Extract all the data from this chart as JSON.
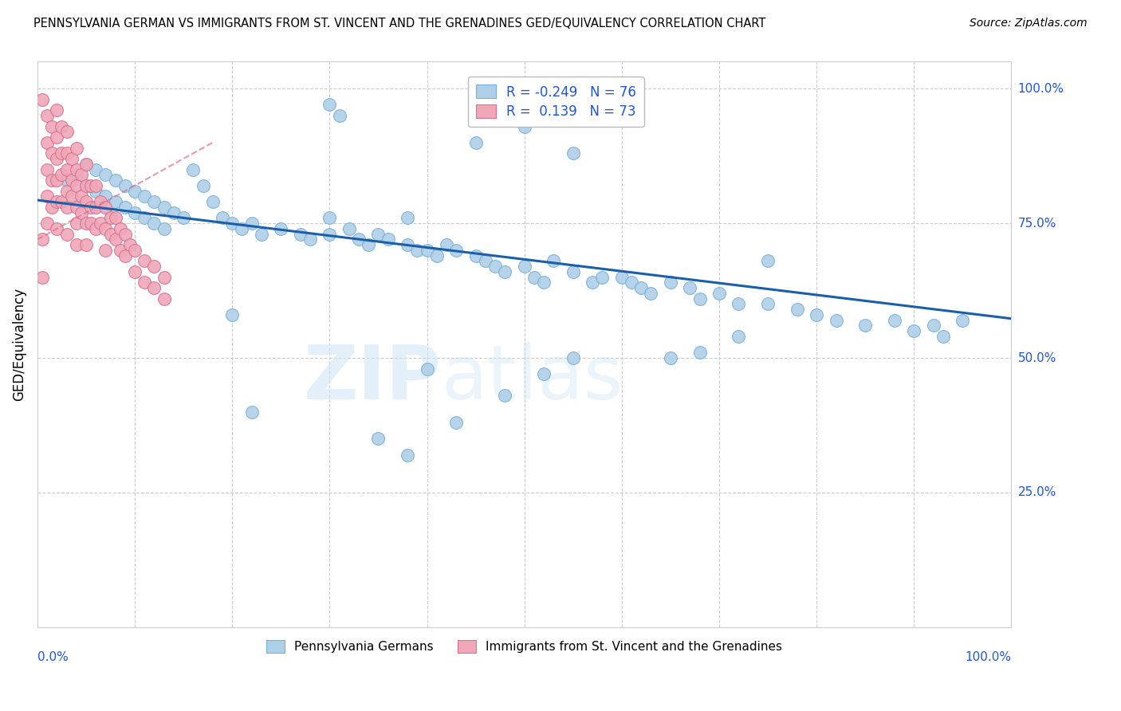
{
  "title": "PENNSYLVANIA GERMAN VS IMMIGRANTS FROM ST. VINCENT AND THE GRENADINES GED/EQUIVALENCY CORRELATION CHART",
  "source": "Source: ZipAtlas.com",
  "ylabel": "GED/Equivalency",
  "xlim": [
    0.0,
    1.0
  ],
  "ylim": [
    0.0,
    1.05
  ],
  "blue_R": -0.249,
  "blue_N": 76,
  "pink_R": 0.139,
  "pink_N": 73,
  "blue_color": "#aecfe8",
  "blue_edge": "#7ab0d8",
  "pink_color": "#f0a8b8",
  "pink_edge": "#d87090",
  "trendline_color": "#1a5faa",
  "trendline_pink_color": "#d87090",
  "watermark_zip": "ZIP",
  "watermark_atlas": "atlas",
  "blue_x": [
    0.03,
    0.04,
    0.05,
    0.05,
    0.06,
    0.06,
    0.07,
    0.07,
    0.08,
    0.08,
    0.09,
    0.09,
    0.1,
    0.1,
    0.11,
    0.11,
    0.12,
    0.12,
    0.13,
    0.13,
    0.14,
    0.15,
    0.16,
    0.17,
    0.18,
    0.19,
    0.2,
    0.21,
    0.22,
    0.23,
    0.25,
    0.27,
    0.28,
    0.3,
    0.3,
    0.32,
    0.33,
    0.34,
    0.35,
    0.36,
    0.38,
    0.38,
    0.39,
    0.4,
    0.41,
    0.42,
    0.43,
    0.45,
    0.46,
    0.47,
    0.48,
    0.5,
    0.51,
    0.52,
    0.53,
    0.55,
    0.57,
    0.6,
    0.61,
    0.62,
    0.63,
    0.65,
    0.67,
    0.68,
    0.7,
    0.72,
    0.75,
    0.78,
    0.8,
    0.82,
    0.85,
    0.88,
    0.9,
    0.92,
    0.93,
    0.95
  ],
  "blue_y": [
    0.83,
    0.84,
    0.86,
    0.82,
    0.85,
    0.81,
    0.84,
    0.8,
    0.83,
    0.79,
    0.82,
    0.78,
    0.81,
    0.77,
    0.8,
    0.76,
    0.79,
    0.75,
    0.78,
    0.74,
    0.77,
    0.76,
    0.85,
    0.82,
    0.79,
    0.76,
    0.75,
    0.74,
    0.75,
    0.73,
    0.74,
    0.73,
    0.72,
    0.76,
    0.73,
    0.74,
    0.72,
    0.71,
    0.73,
    0.72,
    0.76,
    0.71,
    0.7,
    0.7,
    0.69,
    0.71,
    0.7,
    0.69,
    0.68,
    0.67,
    0.66,
    0.67,
    0.65,
    0.64,
    0.68,
    0.66,
    0.64,
    0.65,
    0.64,
    0.63,
    0.62,
    0.64,
    0.63,
    0.61,
    0.62,
    0.6,
    0.6,
    0.59,
    0.58,
    0.57,
    0.56,
    0.57,
    0.55,
    0.56,
    0.54,
    0.57
  ],
  "blue_outliers_x": [
    0.3,
    0.31,
    0.5,
    0.45,
    0.55,
    0.6,
    0.2,
    0.22,
    0.35,
    0.38,
    0.4,
    0.43,
    0.48,
    0.52,
    0.55,
    0.58,
    0.65,
    0.68,
    0.72,
    0.75
  ],
  "blue_outliers_y": [
    0.97,
    0.95,
    0.93,
    0.9,
    0.88,
    1.0,
    0.58,
    0.4,
    0.35,
    0.32,
    0.48,
    0.38,
    0.43,
    0.47,
    0.5,
    0.65,
    0.5,
    0.51,
    0.54,
    0.68
  ],
  "pink_x": [
    0.01,
    0.01,
    0.01,
    0.01,
    0.01,
    0.015,
    0.015,
    0.015,
    0.015,
    0.02,
    0.02,
    0.02,
    0.02,
    0.02,
    0.02,
    0.025,
    0.025,
    0.025,
    0.025,
    0.03,
    0.03,
    0.03,
    0.03,
    0.03,
    0.03,
    0.035,
    0.035,
    0.035,
    0.04,
    0.04,
    0.04,
    0.04,
    0.04,
    0.04,
    0.045,
    0.045,
    0.045,
    0.05,
    0.05,
    0.05,
    0.05,
    0.05,
    0.055,
    0.055,
    0.055,
    0.06,
    0.06,
    0.06,
    0.065,
    0.065,
    0.07,
    0.07,
    0.07,
    0.075,
    0.075,
    0.08,
    0.08,
    0.085,
    0.085,
    0.09,
    0.09,
    0.095,
    0.1,
    0.1,
    0.11,
    0.11,
    0.12,
    0.12,
    0.13,
    0.13,
    0.005,
    0.005,
    0.005
  ],
  "pink_y": [
    0.95,
    0.9,
    0.85,
    0.8,
    0.75,
    0.93,
    0.88,
    0.83,
    0.78,
    0.96,
    0.91,
    0.87,
    0.83,
    0.79,
    0.74,
    0.93,
    0.88,
    0.84,
    0.79,
    0.92,
    0.88,
    0.85,
    0.81,
    0.78,
    0.73,
    0.87,
    0.83,
    0.8,
    0.89,
    0.85,
    0.82,
    0.78,
    0.75,
    0.71,
    0.84,
    0.8,
    0.77,
    0.86,
    0.82,
    0.79,
    0.75,
    0.71,
    0.82,
    0.78,
    0.75,
    0.82,
    0.78,
    0.74,
    0.79,
    0.75,
    0.78,
    0.74,
    0.7,
    0.76,
    0.73,
    0.76,
    0.72,
    0.74,
    0.7,
    0.73,
    0.69,
    0.71,
    0.7,
    0.66,
    0.68,
    0.64,
    0.67,
    0.63,
    0.65,
    0.61,
    0.98,
    0.72,
    0.65
  ],
  "blue_trendline_x0": 0.0,
  "blue_trendline_x1": 1.0,
  "blue_trendline_y0": 0.793,
  "blue_trendline_y1": 0.573,
  "pink_trendline_x0": 0.0,
  "pink_trendline_x1": 0.18,
  "pink_trendline_y0": 0.72,
  "pink_trendline_y1": 0.9
}
